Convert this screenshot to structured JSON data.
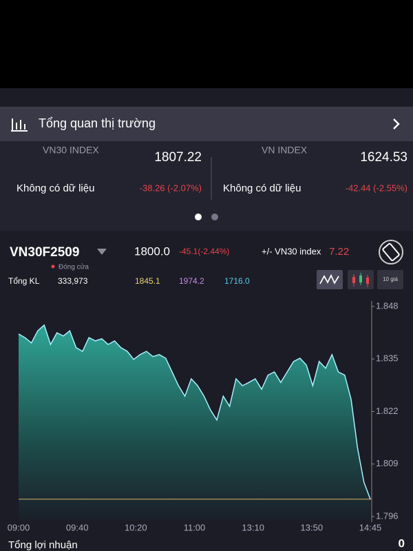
{
  "header": {
    "title": "Tổng quan thị trường"
  },
  "indices": [
    {
      "name": "VN30 INDEX",
      "value": "1807.22",
      "status": "Không có dữ liệu",
      "change": "-38.26 (-2.07%)"
    },
    {
      "name": "VN INDEX",
      "value": "1624.53",
      "status": "Không có dữ liệu",
      "change": "-42.44 (-2.55%)"
    }
  ],
  "contract": {
    "symbol": "VN30F2509",
    "price": "1800.0",
    "change": "-45.1(-2.44%)",
    "basis_label": "+/- VN30 index",
    "basis": "7.22",
    "state": "Đóng cửa",
    "volume_label": "Tổng KL",
    "volume": "333,973",
    "levels": [
      "1845.1",
      "1974.2",
      "1716.0"
    ]
  },
  "buttons": {
    "price_depth": "10 giá"
  },
  "chart_data": {
    "type": "area",
    "color": "#a8f0ff",
    "values": [
      1841.2,
      1840.3,
      1839.0,
      1842.0,
      1843.4,
      1838.6,
      1841.5,
      1840.7,
      1842.0,
      1837.8,
      1836.9,
      1840.3,
      1839.5,
      1840.0,
      1838.6,
      1839.5,
      1837.8,
      1836.9,
      1834.9,
      1836.1,
      1836.9,
      1835.6,
      1836.1,
      1835.2,
      1831.8,
      1828.4,
      1825.8,
      1830.1,
      1828.4,
      1825.8,
      1822.4,
      1819.9,
      1825.8,
      1823.3,
      1830.1,
      1828.4,
      1829.2,
      1830.1,
      1827.5,
      1831.0,
      1831.8,
      1829.2,
      1831.8,
      1834.4,
      1835.2,
      1833.5,
      1828.4,
      1834.4,
      1832.7,
      1836.1,
      1831.8,
      1831.0,
      1825.0,
      1813.0,
      1804.5,
      1800.3
    ],
    "reference": 1800.3,
    "xticks": [
      "09:00",
      "09:40",
      "10:20",
      "11:00",
      "13:10",
      "13:50",
      "14:45"
    ],
    "ylim": [
      1796,
      1848
    ],
    "yticks": [
      {
        "value": 1848,
        "label": "1.848"
      },
      {
        "value": 1835,
        "label": "1.835"
      },
      {
        "value": 1822,
        "label": "1.822"
      },
      {
        "value": 1809,
        "label": "1.809"
      },
      {
        "value": 1796,
        "label": "1.796"
      }
    ]
  },
  "footer": {
    "label": "Tổng lợi nhuận",
    "value": "0"
  }
}
